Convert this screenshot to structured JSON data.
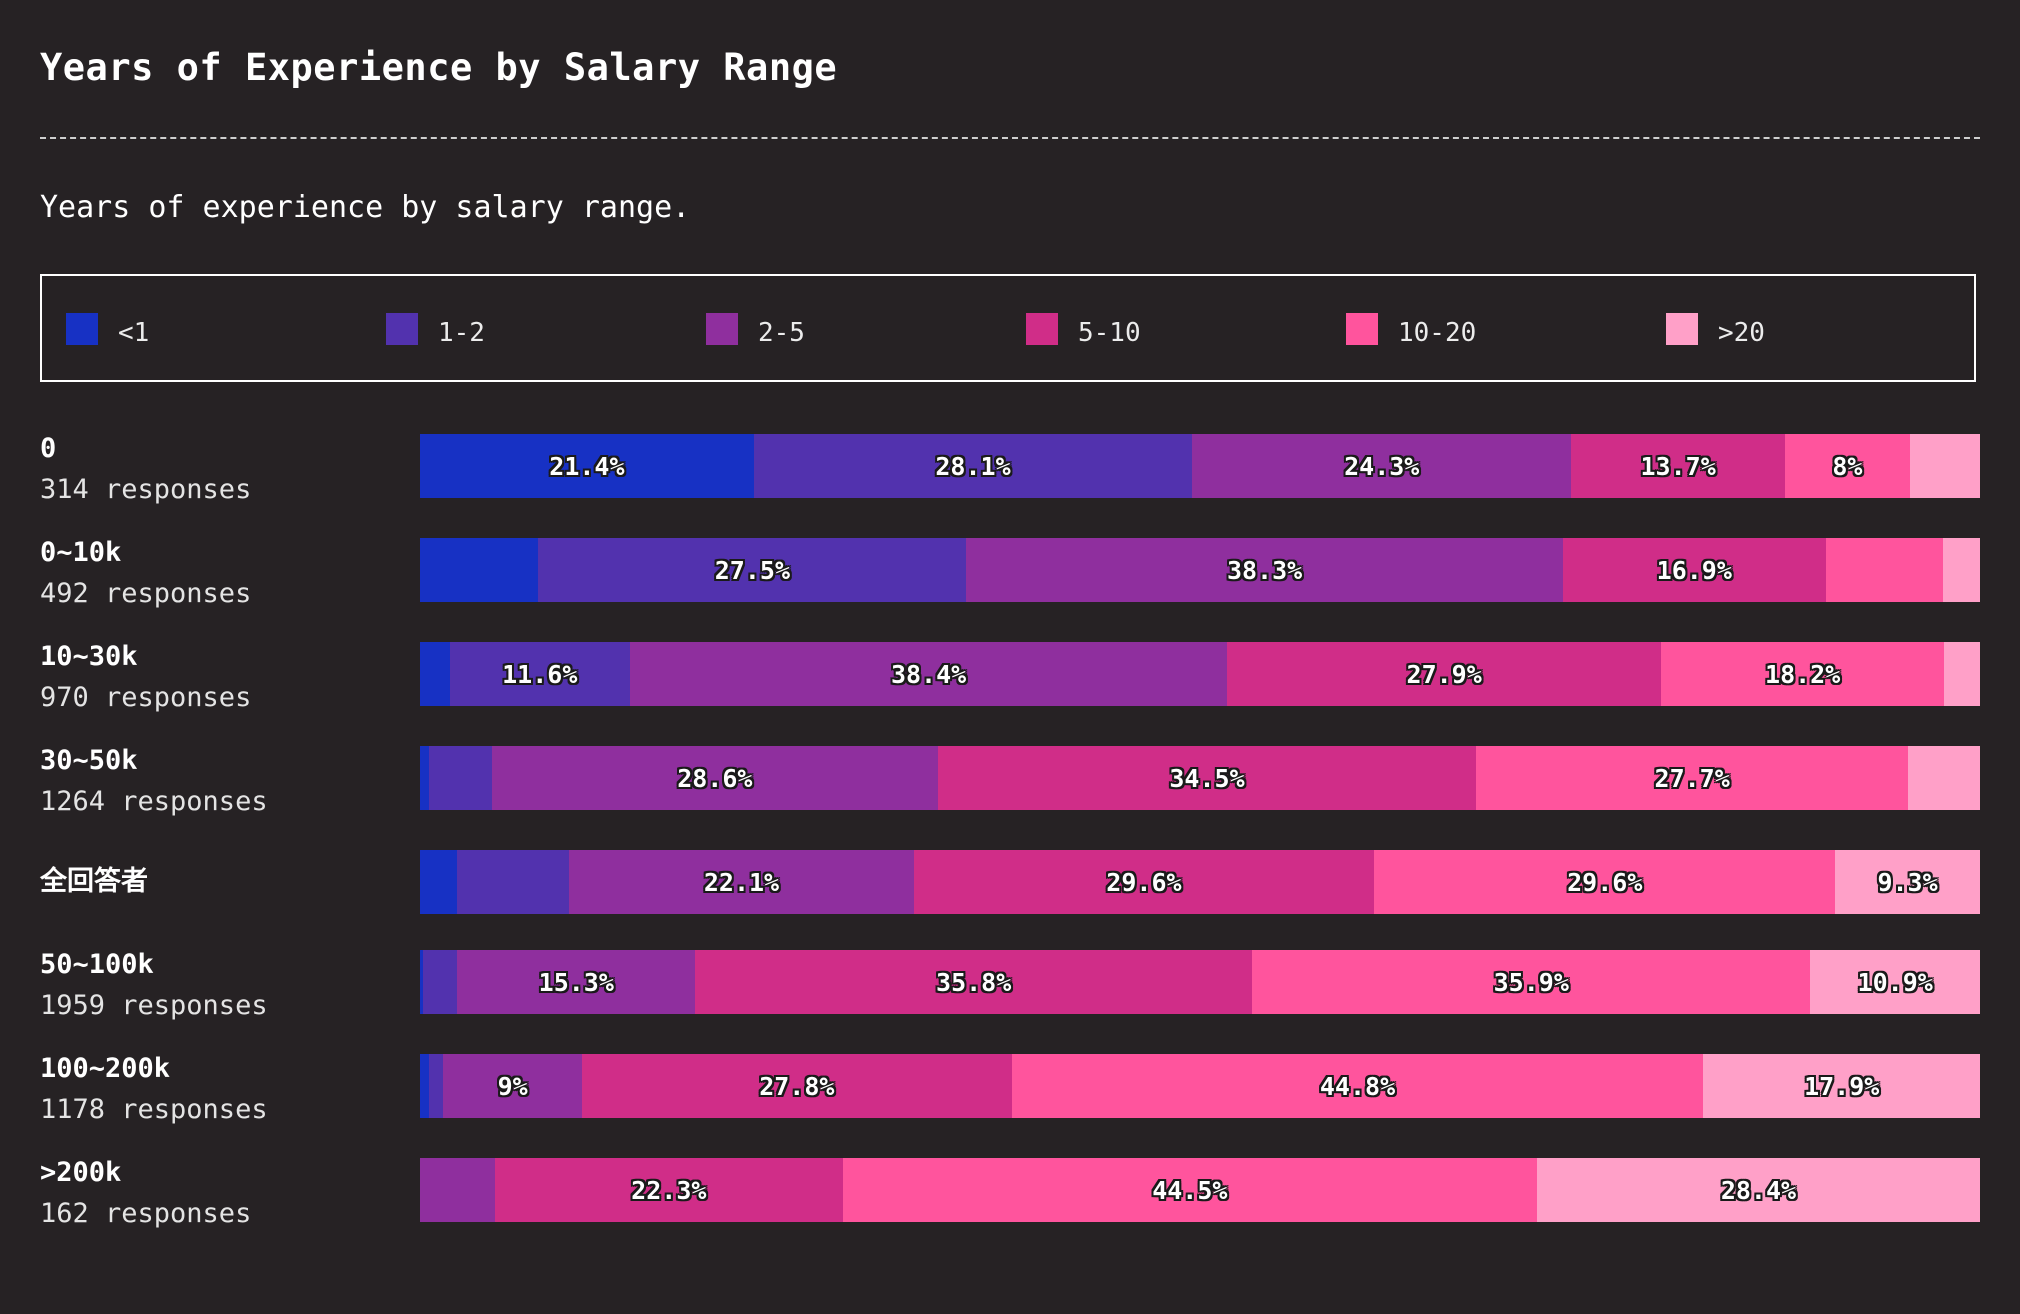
{
  "header": {
    "title": "Years of Experience by Salary Range",
    "subtitle": "Years of experience by salary range."
  },
  "chart_data": {
    "type": "bar",
    "orientation": "horizontal",
    "stacked": true,
    "normalized": true,
    "title": "Years of Experience by Salary Range",
    "subtitle": "Years of experience by salary range.",
    "legend_position": "top",
    "unit": "%",
    "series_names": [
      "<1",
      "1-2",
      "2-5",
      "5-10",
      "10-20",
      ">20"
    ],
    "colors": [
      "#1731c4",
      "#5232ae",
      "#8f2f9e",
      "#d02d88",
      "#ff549d",
      "#ffa0c8"
    ],
    "rows": [
      {
        "category": "0",
        "responses": "314 responses",
        "values": [
          21.4,
          28.1,
          24.3,
          13.7,
          8.0,
          4.5
        ],
        "labels": [
          "21.4%",
          "28.1%",
          "24.3%",
          "13.7%",
          "8%",
          ""
        ]
      },
      {
        "category": "0~10k",
        "responses": "492 responses",
        "values": [
          7.6,
          27.5,
          38.3,
          16.9,
          7.5,
          2.4
        ],
        "labels": [
          "",
          "27.5%",
          "38.3%",
          "16.9%",
          "",
          ""
        ]
      },
      {
        "category": "10~30k",
        "responses": "970 responses",
        "values": [
          1.9,
          11.6,
          38.4,
          27.9,
          18.2,
          2.3
        ],
        "labels": [
          "",
          "11.6%",
          "38.4%",
          "27.9%",
          "18.2%",
          ""
        ]
      },
      {
        "category": "30~50k",
        "responses": "1264 responses",
        "values": [
          0.6,
          4.0,
          28.6,
          34.5,
          27.7,
          4.6
        ],
        "labels": [
          "",
          "",
          "28.6%",
          "34.5%",
          "27.7%",
          ""
        ]
      },
      {
        "category": "全回答者",
        "responses": "",
        "values": [
          2.4,
          7.2,
          22.1,
          29.6,
          29.6,
          9.3
        ],
        "labels": [
          "",
          "",
          "22.1%",
          "29.6%",
          "29.6%",
          "9.3%"
        ]
      },
      {
        "category": "50~100k",
        "responses": "1959 responses",
        "values": [
          0.2,
          2.2,
          15.3,
          35.8,
          35.9,
          10.9
        ],
        "labels": [
          "",
          "",
          "15.3%",
          "35.8%",
          "35.9%",
          "10.9%"
        ]
      },
      {
        "category": "100~200k",
        "responses": "1178 responses",
        "values": [
          0.6,
          0.9,
          9.0,
          27.8,
          44.8,
          17.9
        ],
        "labels": [
          "",
          "",
          "9%",
          "27.8%",
          "44.8%",
          "17.9%"
        ]
      },
      {
        "category": ">200k",
        "responses": "162 responses",
        "values": [
          0.0,
          0.0,
          4.8,
          22.3,
          44.5,
          28.4
        ],
        "labels": [
          "",
          "",
          "",
          "22.3%",
          "44.5%",
          "28.4%"
        ]
      }
    ]
  }
}
